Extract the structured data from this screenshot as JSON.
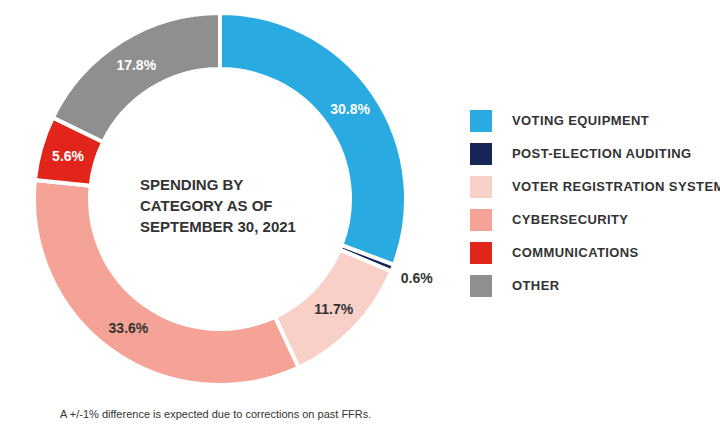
{
  "chart_data": {
    "type": "pie",
    "title": "SPENDING BY\nCATEGORY AS OF\nSEPTEMBER 30, 2021",
    "categories": [
      "VOTING EQUIPMENT",
      "POST-ELECTION AUDITING",
      "VOTER REGISTRATION SYSTEMS",
      "CYBERSECURITY",
      "COMMUNICATIONS",
      "OTHER"
    ],
    "values": [
      30.8,
      0.6,
      11.7,
      33.6,
      5.6,
      17.8
    ],
    "value_labels": [
      "30.8%",
      "0.6%",
      "11.7%",
      "33.6%",
      "5.6%",
      "17.8%"
    ],
    "colors": [
      "#29abe2",
      "#172659",
      "#f9d0c8",
      "#f4a396",
      "#e1251b",
      "#8f8f8f"
    ],
    "data_labels": true,
    "legend": "right",
    "annotations": [
      "A +/-1% difference is expected due to corrections on past FFRs."
    ]
  }
}
